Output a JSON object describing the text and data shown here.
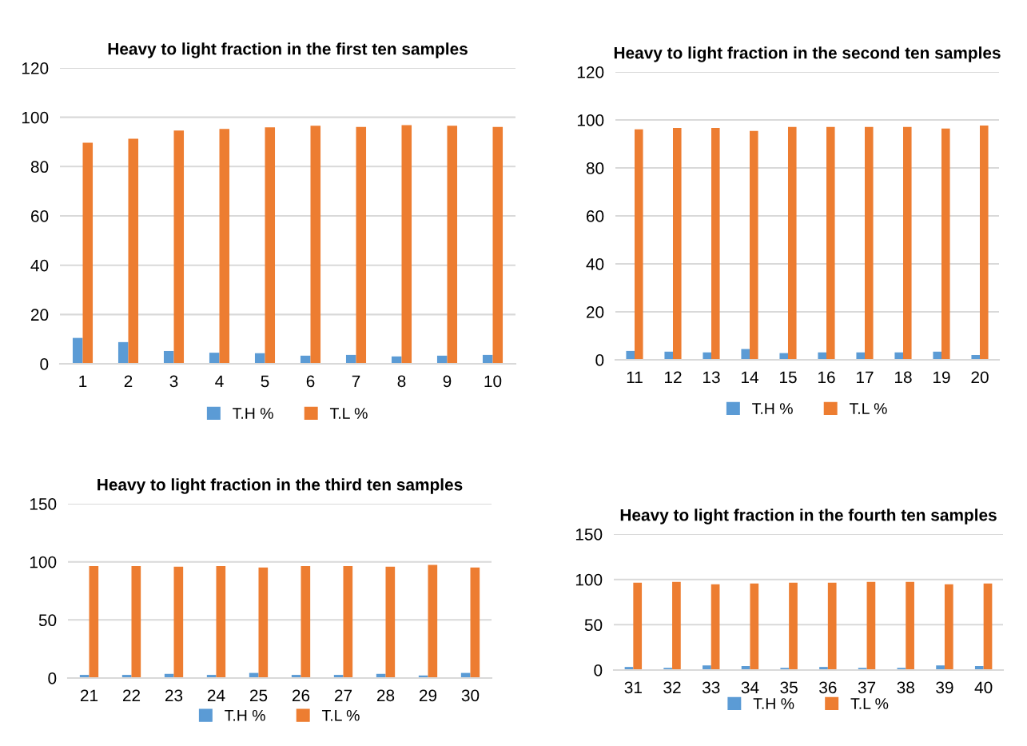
{
  "chart_data": [
    {
      "type": "bar",
      "title": "Heavy to light fraction in the first ten samples",
      "categories": [
        "1",
        "2",
        "3",
        "4",
        "5",
        "6",
        "7",
        "8",
        "9",
        "10"
      ],
      "series": [
        {
          "name": "T.H %",
          "color": "#5b9bd5",
          "values": [
            10.5,
            8.8,
            5.2,
            4.5,
            4.3,
            3.3,
            3.6,
            3.0,
            3.3,
            3.6
          ]
        },
        {
          "name": "T.L %",
          "color": "#ed7d31",
          "values": [
            89.7,
            91.3,
            94.6,
            95.3,
            95.9,
            96.6,
            96.1,
            96.8,
            96.6,
            96.1
          ]
        }
      ],
      "ylim": [
        0,
        120
      ],
      "yticks": [
        0,
        20,
        40,
        60,
        80,
        100,
        120
      ],
      "grid": "y",
      "legend": "bottom"
    },
    {
      "type": "bar",
      "title": "Heavy to light fraction in the second ten samples",
      "categories": [
        "11",
        "12",
        "13",
        "14",
        "15",
        "16",
        "17",
        "18",
        "19",
        "20"
      ],
      "series": [
        {
          "name": "T.H %",
          "color": "#5b9bd5",
          "values": [
            3.7,
            3.4,
            3.1,
            4.5,
            2.8,
            3.1,
            3.1,
            3.1,
            3.4,
            2.0
          ]
        },
        {
          "name": "T.L %",
          "color": "#ed7d31",
          "values": [
            96.1,
            96.7,
            96.7,
            95.4,
            97.1,
            97.1,
            97.1,
            97.1,
            96.4,
            97.7
          ]
        }
      ],
      "ylim": [
        0,
        120
      ],
      "yticks": [
        0,
        20,
        40,
        60,
        80,
        100,
        120
      ],
      "grid": "y",
      "legend": "bottom"
    },
    {
      "type": "bar",
      "title": "Heavy to light fraction in the third ten samples",
      "categories": [
        "21",
        "22",
        "23",
        "24",
        "25",
        "26",
        "27",
        "28",
        "29",
        "30"
      ],
      "series": [
        {
          "name": "T.H %",
          "color": "#5b9bd5",
          "values": [
            2.7,
            2.7,
            3.6,
            2.7,
            4.4,
            2.7,
            2.7,
            3.6,
            2.2,
            4.4
          ]
        },
        {
          "name": "T.L %",
          "color": "#ed7d31",
          "values": [
            96.4,
            96.4,
            95.9,
            96.4,
            95.1,
            96.4,
            96.4,
            95.9,
            97.3,
            95.1
          ]
        }
      ],
      "ylim": [
        0,
        150
      ],
      "yticks": [
        0,
        50,
        100,
        150
      ],
      "grid": "y",
      "legend": "bottom"
    },
    {
      "type": "bar",
      "title": "Heavy to light fraction in the fourth ten samples",
      "categories": [
        "31",
        "32",
        "33",
        "34",
        "35",
        "36",
        "37",
        "38",
        "39",
        "40"
      ],
      "series": [
        {
          "name": "T.H %",
          "color": "#5b9bd5",
          "values": [
            3.4,
            2.4,
            5.1,
            4.4,
            2.4,
            3.4,
            2.4,
            2.4,
            5.1,
            4.4
          ]
        },
        {
          "name": "T.L %",
          "color": "#ed7d31",
          "values": [
            96.3,
            97.3,
            94.6,
            95.6,
            96.3,
            96.3,
            97.3,
            97.3,
            94.6,
            95.6
          ]
        }
      ],
      "ylim": [
        0,
        150
      ],
      "yticks": [
        0,
        50,
        100,
        150
      ],
      "grid": "y",
      "legend": "bottom"
    }
  ]
}
